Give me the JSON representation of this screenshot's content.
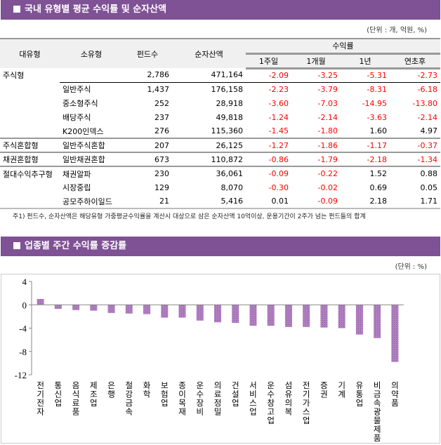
{
  "section1": {
    "title": "국내 유형별 평균 수익률 및 순자산액",
    "unit": "(단위 : 개, 억원, %)",
    "headers": {
      "major": "대유형",
      "minor": "소유형",
      "funds": "펀드수",
      "assets": "순자산액",
      "returns": "수익률",
      "periods": [
        "1주일",
        "1개월",
        "1년",
        "연초후"
      ]
    },
    "rows": [
      {
        "major": "주식형",
        "minor": "",
        "funds": "2,786",
        "assets": "471,164",
        "r": [
          "-2.09",
          "-3.25",
          "-5.31",
          "-2.73"
        ]
      },
      {
        "major": "",
        "minor": "일반주식",
        "funds": "1,437",
        "assets": "176,158",
        "r": [
          "-2.23",
          "-3.79",
          "-8.31",
          "-6.18"
        ]
      },
      {
        "major": "",
        "minor": "중소형주식",
        "funds": "252",
        "assets": "28,918",
        "r": [
          "-3.60",
          "-7.03",
          "-14.95",
          "-13.80"
        ]
      },
      {
        "major": "",
        "minor": "배당주식",
        "funds": "237",
        "assets": "49,818",
        "r": [
          "-1.24",
          "-2.14",
          "-3.63",
          "-2.14"
        ]
      },
      {
        "major": "",
        "minor": "K200인덱스",
        "funds": "276",
        "assets": "115,360",
        "r": [
          "-1.45",
          "-1.80",
          "1.60",
          "4.97"
        ]
      },
      {
        "major": "주식혼합형",
        "minor": "일반주식혼합",
        "funds": "207",
        "assets": "26,125",
        "r": [
          "-1.27",
          "-1.86",
          "-1.17",
          "-0.37"
        ]
      },
      {
        "major": "채권혼합형",
        "minor": "일반채권혼합",
        "funds": "673",
        "assets": "110,872",
        "r": [
          "-0.86",
          "-1.79",
          "-2.18",
          "-1.34"
        ]
      },
      {
        "major": "절대수익추구형",
        "minor": "채권알파",
        "funds": "230",
        "assets": "36,061",
        "r": [
          "-0.09",
          "-0.22",
          "1.52",
          "0.88"
        ]
      },
      {
        "major": "",
        "minor": "시장중립",
        "funds": "129",
        "assets": "8,070",
        "r": [
          "-0.30",
          "-0.02",
          "0.69",
          "0.05"
        ]
      },
      {
        "major": "",
        "minor": "공모주하이일드",
        "funds": "21",
        "assets": "5,416",
        "r": [
          "0.01",
          "-0.09",
          "2.18",
          "1.71"
        ]
      }
    ],
    "note": "주1) 펀드수, 순자산액은 해당유형 가중평균수익률을 계산시 대상으로 삼은 순자산액 10억이상, 운용기간이 2주가 넘는 펀드들의 합계"
  },
  "section2": {
    "title": "업종별 주간 수익률 증감률",
    "unit": "(단위 : %)"
  },
  "colors": {
    "header": "#7f5195",
    "bar": "#b07fc0",
    "negative": "#ff0000"
  },
  "chart_data": {
    "type": "bar",
    "ylim": [
      -12,
      4
    ],
    "yticks": [
      "4",
      "0",
      "-4",
      "-8",
      "-12"
    ],
    "grid": false,
    "categories": [
      "전기전자",
      "통신업",
      "음식료품",
      "제조업",
      "은행",
      "철강금속",
      "화학",
      "보험업",
      "종이목재",
      "운수장비",
      "의료정밀",
      "건설업",
      "서비스업",
      "운수창고업",
      "섬유의복",
      "전기가스업",
      "증권",
      "기계",
      "유통업",
      "비금속광물제품",
      "의약품"
    ],
    "values": [
      1.0,
      -0.7,
      -0.9,
      -1.0,
      -1.4,
      -1.5,
      -1.6,
      -2.2,
      -2.2,
      -2.7,
      -3.0,
      -3.1,
      -3.6,
      -3.6,
      -3.8,
      -3.8,
      -3.9,
      -4.0,
      -5.1,
      -5.7,
      -9.8
    ]
  }
}
